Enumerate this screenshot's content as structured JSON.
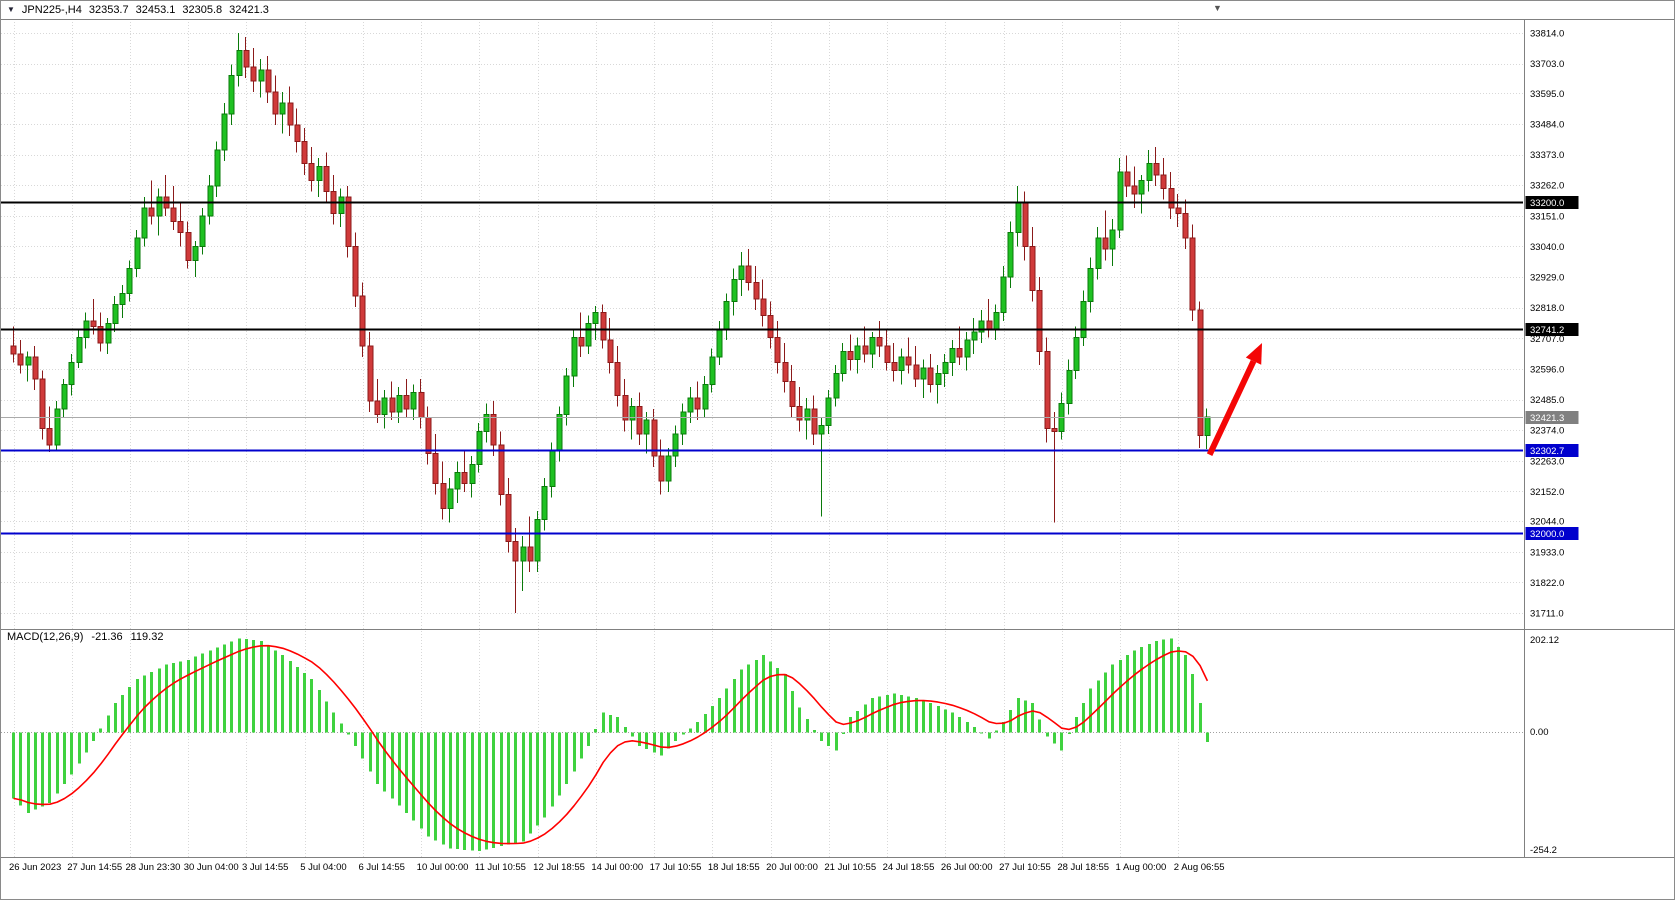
{
  "header": {
    "symbol_timeframe": "JPN225-,H4",
    "open": "32353.7",
    "high": "32453.1",
    "low": "32305.8",
    "close": "32421.3"
  },
  "chart_data": {
    "type": "candlestick",
    "symbol": "JPN225-",
    "timeframe": "H4",
    "title": "JPN225-,H4 32353.7 32453.1 32305.8 32421.3",
    "price_axis_ticks": [
      "33814.0",
      "33703.0",
      "33595.0",
      "33484.0",
      "33373.0",
      "33262.0",
      "33151.0",
      "33040.0",
      "32929.0",
      "32818.0",
      "32707.0",
      "32596.0",
      "32485.0",
      "32374.0",
      "32263.0",
      "32152.0",
      "32044.0",
      "31933.0",
      "31822.0",
      "31711.0"
    ],
    "time_axis_labels": [
      "26 Jun 2023",
      "27 Jun 14:55",
      "28 Jun 23:30",
      "30 Jun 04:00",
      "3 Jul 14:55",
      "5 Jul 04:00",
      "6 Jul 14:55",
      "10 Jul 00:00",
      "11 Jul 10:55",
      "12 Jul 18:55",
      "14 Jul 00:00",
      "17 Jul 10:55",
      "18 Jul 18:55",
      "20 Jul 00:00",
      "21 Jul 10:55",
      "24 Jul 18:55",
      "26 Jul 00:00",
      "27 Jul 10:55",
      "28 Jul 18:55",
      "1 Aug 00:00",
      "2 Aug 06:55"
    ],
    "bars_per_time_label": 8,
    "candles_ohlc": [
      [
        32680,
        32750,
        32620,
        32650
      ],
      [
        32650,
        32700,
        32580,
        32610
      ],
      [
        32610,
        32660,
        32550,
        32640
      ],
      [
        32640,
        32680,
        32520,
        32560
      ],
      [
        32560,
        32590,
        32340,
        32380
      ],
      [
        32380,
        32460,
        32295,
        32320
      ],
      [
        32320,
        32480,
        32300,
        32450
      ],
      [
        32450,
        32560,
        32420,
        32540
      ],
      [
        32540,
        32650,
        32500,
        32620
      ],
      [
        32620,
        32740,
        32600,
        32710
      ],
      [
        32710,
        32800,
        32670,
        32770
      ],
      [
        32770,
        32850,
        32720,
        32750
      ],
      [
        32750,
        32800,
        32660,
        32690
      ],
      [
        32690,
        32780,
        32650,
        32760
      ],
      [
        32760,
        32860,
        32730,
        32830
      ],
      [
        32830,
        32900,
        32780,
        32870
      ],
      [
        32870,
        32990,
        32840,
        32960
      ],
      [
        32960,
        33100,
        32930,
        33070
      ],
      [
        33070,
        33220,
        33040,
        33180
      ],
      [
        33180,
        33280,
        33120,
        33150
      ],
      [
        33150,
        33250,
        33080,
        33220
      ],
      [
        33220,
        33300,
        33150,
        33180
      ],
      [
        33180,
        33260,
        33100,
        33130
      ],
      [
        33130,
        33200,
        33040,
        33090
      ],
      [
        33090,
        33130,
        32960,
        32990
      ],
      [
        32990,
        33060,
        32930,
        33040
      ],
      [
        33040,
        33180,
        33010,
        33150
      ],
      [
        33150,
        33300,
        33120,
        33260
      ],
      [
        33260,
        33420,
        33220,
        33390
      ],
      [
        33390,
        33560,
        33350,
        33520
      ],
      [
        33520,
        33700,
        33480,
        33660
      ],
      [
        33660,
        33814,
        33620,
        33750
      ],
      [
        33750,
        33800,
        33650,
        33690
      ],
      [
        33690,
        33760,
        33600,
        33640
      ],
      [
        33640,
        33720,
        33580,
        33680
      ],
      [
        33680,
        33730,
        33560,
        33600
      ],
      [
        33600,
        33660,
        33480,
        33520
      ],
      [
        33520,
        33600,
        33450,
        33560
      ],
      [
        33560,
        33620,
        33440,
        33480
      ],
      [
        33480,
        33540,
        33380,
        33420
      ],
      [
        33420,
        33470,
        33300,
        33340
      ],
      [
        33340,
        33400,
        33240,
        33280
      ],
      [
        33280,
        33360,
        33220,
        33330
      ],
      [
        33330,
        33380,
        33200,
        33240
      ],
      [
        33240,
        33300,
        33120,
        33160
      ],
      [
        33160,
        33250,
        33110,
        33220
      ],
      [
        33220,
        33260,
        33000,
        33040
      ],
      [
        33040,
        33090,
        32820,
        32860
      ],
      [
        32860,
        32910,
        32640,
        32680
      ],
      [
        32680,
        32730,
        32440,
        32480
      ],
      [
        32480,
        32560,
        32400,
        32430
      ],
      [
        32430,
        32520,
        32380,
        32490
      ],
      [
        32490,
        32550,
        32410,
        32440
      ],
      [
        32440,
        32530,
        32400,
        32500
      ],
      [
        32500,
        32560,
        32420,
        32450
      ],
      [
        32450,
        32540,
        32410,
        32510
      ],
      [
        32510,
        32560,
        32380,
        32420
      ],
      [
        32420,
        32460,
        32250,
        32290
      ],
      [
        32290,
        32360,
        32140,
        32180
      ],
      [
        32180,
        32260,
        32050,
        32090
      ],
      [
        32090,
        32200,
        32040,
        32160
      ],
      [
        32160,
        32260,
        32110,
        32220
      ],
      [
        32220,
        32300,
        32150,
        32180
      ],
      [
        32180,
        32280,
        32130,
        32250
      ],
      [
        32250,
        32400,
        32220,
        32370
      ],
      [
        32370,
        32470,
        32330,
        32430
      ],
      [
        32430,
        32480,
        32280,
        32320
      ],
      [
        32320,
        32370,
        32100,
        32140
      ],
      [
        32140,
        32200,
        31930,
        31970
      ],
      [
        31970,
        32020,
        31711,
        31900
      ],
      [
        31900,
        31990,
        31790,
        31950
      ],
      [
        31950,
        32060,
        31860,
        31900
      ],
      [
        31900,
        32080,
        31860,
        32050
      ],
      [
        32050,
        32200,
        32010,
        32170
      ],
      [
        32170,
        32330,
        32130,
        32300
      ],
      [
        32300,
        32460,
        32260,
        32430
      ],
      [
        32430,
        32600,
        32390,
        32570
      ],
      [
        32570,
        32740,
        32530,
        32710
      ],
      [
        32710,
        32800,
        32640,
        32680
      ],
      [
        32680,
        32790,
        32650,
        32760
      ],
      [
        32760,
        32825,
        32700,
        32800
      ],
      [
        32800,
        32830,
        32670,
        32700
      ],
      [
        32700,
        32780,
        32580,
        32620
      ],
      [
        32620,
        32680,
        32460,
        32500
      ],
      [
        32500,
        32560,
        32370,
        32410
      ],
      [
        32410,
        32490,
        32340,
        32460
      ],
      [
        32460,
        32510,
        32320,
        32360
      ],
      [
        32360,
        32440,
        32290,
        32410
      ],
      [
        32410,
        32450,
        32240,
        32280
      ],
      [
        32280,
        32340,
        32140,
        32190
      ],
      [
        32190,
        32310,
        32150,
        32280
      ],
      [
        32280,
        32390,
        32240,
        32360
      ],
      [
        32360,
        32470,
        32320,
        32440
      ],
      [
        32440,
        32530,
        32400,
        32490
      ],
      [
        32490,
        32550,
        32410,
        32450
      ],
      [
        32450,
        32570,
        32420,
        32540
      ],
      [
        32540,
        32670,
        32510,
        32640
      ],
      [
        32640,
        32770,
        32610,
        32740
      ],
      [
        32740,
        32870,
        32700,
        32840
      ],
      [
        32840,
        32960,
        32790,
        32920
      ],
      [
        32920,
        33020,
        32860,
        32970
      ],
      [
        32970,
        33030,
        32880,
        32910
      ],
      [
        32910,
        32970,
        32810,
        32850
      ],
      [
        32850,
        32920,
        32750,
        32790
      ],
      [
        32790,
        32840,
        32670,
        32710
      ],
      [
        32710,
        32770,
        32580,
        32620
      ],
      [
        32620,
        32690,
        32510,
        32550
      ],
      [
        32550,
        32610,
        32420,
        32460
      ],
      [
        32460,
        32530,
        32370,
        32410
      ],
      [
        32410,
        32490,
        32340,
        32450
      ],
      [
        32450,
        32500,
        32320,
        32360
      ],
      [
        32360,
        32420,
        32060,
        32390
      ],
      [
        32390,
        32520,
        32360,
        32490
      ],
      [
        32490,
        32610,
        32460,
        32580
      ],
      [
        32580,
        32690,
        32550,
        32660
      ],
      [
        32660,
        32720,
        32590,
        32630
      ],
      [
        32630,
        32710,
        32580,
        32680
      ],
      [
        32680,
        32750,
        32620,
        32650
      ],
      [
        32650,
        32730,
        32600,
        32710
      ],
      [
        32710,
        32770,
        32640,
        32680
      ],
      [
        32680,
        32740,
        32590,
        32620
      ],
      [
        32620,
        32690,
        32550,
        32590
      ],
      [
        32590,
        32670,
        32540,
        32640
      ],
      [
        32640,
        32710,
        32580,
        32610
      ],
      [
        32610,
        32680,
        32530,
        32560
      ],
      [
        32560,
        32630,
        32490,
        32600
      ],
      [
        32600,
        32650,
        32510,
        32540
      ],
      [
        32540,
        32610,
        32470,
        32580
      ],
      [
        32580,
        32650,
        32530,
        32620
      ],
      [
        32620,
        32700,
        32570,
        32670
      ],
      [
        32670,
        32750,
        32610,
        32640
      ],
      [
        32640,
        32730,
        32590,
        32700
      ],
      [
        32700,
        32780,
        32650,
        32730
      ],
      [
        32730,
        32810,
        32690,
        32770
      ],
      [
        32770,
        32850,
        32710,
        32740
      ],
      [
        32740,
        32830,
        32700,
        32800
      ],
      [
        32800,
        32970,
        32770,
        32930
      ],
      [
        32930,
        33130,
        32890,
        33090
      ],
      [
        33090,
        33260,
        33040,
        33200
      ],
      [
        33200,
        33240,
        32990,
        33040
      ],
      [
        33040,
        33110,
        32840,
        32880
      ],
      [
        32880,
        32930,
        32610,
        32660
      ],
      [
        32660,
        32710,
        32330,
        32380
      ],
      [
        32380,
        32440,
        32040,
        32370
      ],
      [
        32370,
        32510,
        32340,
        32470
      ],
      [
        32470,
        32630,
        32430,
        32590
      ],
      [
        32590,
        32750,
        32560,
        32710
      ],
      [
        32710,
        32880,
        32680,
        32840
      ],
      [
        32840,
        33000,
        32800,
        32960
      ],
      [
        32960,
        33110,
        32920,
        33070
      ],
      [
        33070,
        33170,
        32990,
        33030
      ],
      [
        33030,
        33140,
        32970,
        33100
      ],
      [
        33100,
        33360,
        33070,
        33310
      ],
      [
        33310,
        33370,
        33220,
        33260
      ],
      [
        33260,
        33330,
        33180,
        33230
      ],
      [
        33230,
        33300,
        33160,
        33280
      ],
      [
        33280,
        33390,
        33240,
        33340
      ],
      [
        33340,
        33400,
        33260,
        33300
      ],
      [
        33300,
        33360,
        33210,
        33250
      ],
      [
        33250,
        33310,
        33140,
        33180
      ],
      [
        33180,
        33230,
        33110,
        33160
      ],
      [
        33160,
        33210,
        33030,
        33070
      ],
      [
        33070,
        33120,
        32770,
        32810
      ],
      [
        32810,
        32840,
        32310,
        32353.7
      ],
      [
        32353.7,
        32453.1,
        32305.8,
        32421.3
      ]
    ],
    "horizontal_lines": [
      {
        "name": "resistance-line-33200",
        "price": 33200.0,
        "label": "33200.0",
        "color": "#000000",
        "badge": "#000000",
        "width": 2
      },
      {
        "name": "resistance-line-32741",
        "price": 32741.2,
        "label": "32741.2",
        "color": "#000000",
        "badge": "#000000",
        "width": 2
      },
      {
        "name": "current-price-line",
        "price": 32421.3,
        "label": "32421.3",
        "color": "#aaaaaa",
        "badge": "#808080",
        "width": 1
      },
      {
        "name": "support-line-32302",
        "price": 32302.7,
        "label": "32302.7",
        "color": "#0000cd",
        "badge": "#0000cd",
        "width": 2
      },
      {
        "name": "support-line-32000",
        "price": 32000.0,
        "label": "32000.0",
        "color": "#0000cd",
        "badge": "#0000cd",
        "width": 2
      }
    ],
    "current_price": 32421.3,
    "indicator": {
      "name": "MACD(12,26,9)",
      "macd_value": "-21.36",
      "signal_value": "119.32",
      "axis_max": "202.12",
      "axis_zero": "0.00",
      "axis_min": "-254.2",
      "histogram_color": "#3fd23f",
      "signal_color": "#ff0000",
      "histogram_anchors": [
        [
          0,
          -140
        ],
        [
          2,
          -170
        ],
        [
          5,
          -150
        ],
        [
          8,
          -90
        ],
        [
          11,
          -20
        ],
        [
          14,
          60
        ],
        [
          17,
          110
        ],
        [
          21,
          140
        ],
        [
          24,
          150
        ],
        [
          27,
          170
        ],
        [
          31,
          195
        ],
        [
          34,
          190
        ],
        [
          37,
          160
        ],
        [
          41,
          110
        ],
        [
          44,
          40
        ],
        [
          47,
          -30
        ],
        [
          50,
          -110
        ],
        [
          54,
          -170
        ],
        [
          57,
          -220
        ],
        [
          60,
          -245
        ],
        [
          64,
          -250
        ],
        [
          67,
          -240
        ],
        [
          70,
          -230
        ],
        [
          73,
          -180
        ],
        [
          76,
          -110
        ],
        [
          79,
          -30
        ],
        [
          81,
          40
        ],
        [
          83,
          30
        ],
        [
          86,
          -30
        ],
        [
          89,
          -50
        ],
        [
          91,
          -20
        ],
        [
          94,
          20
        ],
        [
          97,
          70
        ],
        [
          100,
          130
        ],
        [
          103,
          160
        ],
        [
          106,
          120
        ],
        [
          108,
          50
        ],
        [
          111,
          -20
        ],
        [
          113,
          -40
        ],
        [
          115,
          30
        ],
        [
          118,
          70
        ],
        [
          121,
          80
        ],
        [
          124,
          70
        ],
        [
          126,
          60
        ],
        [
          129,
          40
        ],
        [
          132,
          10
        ],
        [
          134,
          -15
        ],
        [
          136,
          20
        ],
        [
          138,
          70
        ],
        [
          140,
          60
        ],
        [
          142,
          -10
        ],
        [
          144,
          -40
        ],
        [
          146,
          30
        ],
        [
          148,
          90
        ],
        [
          151,
          140
        ],
        [
          154,
          170
        ],
        [
          157,
          190
        ],
        [
          159,
          195
        ],
        [
          161,
          160
        ],
        [
          162,
          120
        ],
        [
          163,
          60
        ],
        [
          164,
          -21.36
        ]
      ]
    },
    "annotation": {
      "type": "arrow",
      "direction": "up",
      "color": "#f40606",
      "from_bar": 164.3,
      "from_price": 32285,
      "to_bar": 171.5,
      "to_price": 32690
    },
    "colors": {
      "bull_fill": "#1fc122",
      "bull_stroke": "#0a7a0a",
      "bear_fill": "#d03a3a",
      "bear_stroke": "#8b1a1a",
      "grid": "#d8d8d8",
      "zero_line": "#a0a0a0",
      "separator": "#808080",
      "background": "#ffffff",
      "axis_text": "#000000"
    }
  }
}
